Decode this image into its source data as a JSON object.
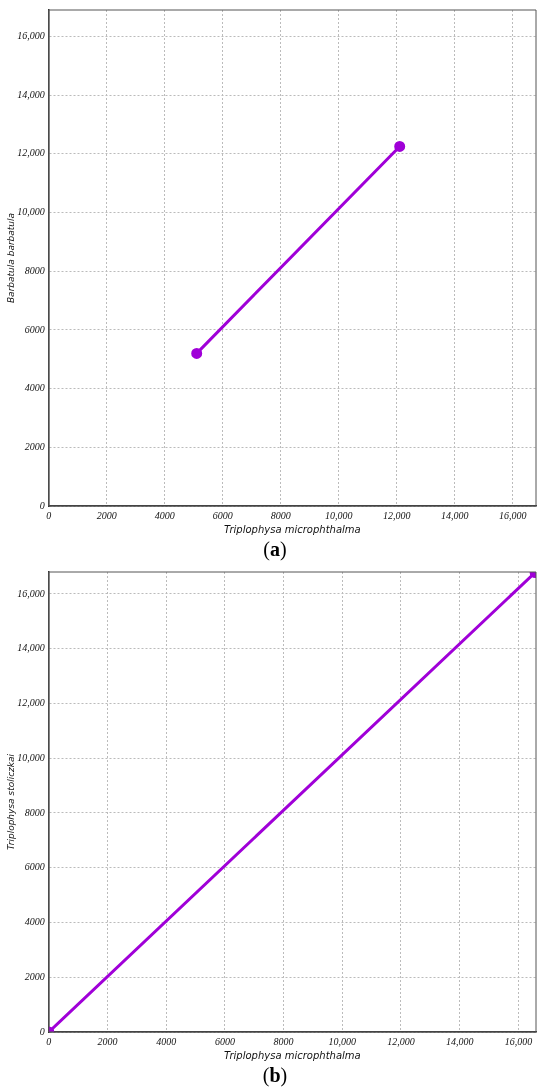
{
  "chart_data": [
    {
      "type": "line",
      "xlabel": "Triplophysa microphthalma",
      "ylabel": "Barbatula barbatula",
      "annotations": [
        "(a)"
      ],
      "x": [
        5100,
        12100
      ],
      "series": [
        {
          "color": "#a000d8",
          "values": [
            5200,
            12250
          ]
        }
      ],
      "xlim": [
        0,
        16800
      ],
      "ylim": [
        0,
        16900
      ],
      "xticks": [
        0,
        2000,
        4000,
        6000,
        8000,
        {
          "value": 10000,
          "label": "10,000"
        },
        {
          "value": 12000,
          "label": "12,000"
        },
        {
          "value": 14000,
          "label": "14,000"
        },
        {
          "value": 16000,
          "label": "16,000"
        }
      ],
      "yticks": [
        0,
        2000,
        4000,
        6000,
        8000,
        {
          "value": 10000,
          "label": "10,000"
        },
        {
          "value": 12000,
          "label": "12,000"
        },
        {
          "value": 14000,
          "label": "14,000"
        },
        {
          "value": 16000,
          "label": "16,000"
        }
      ],
      "grid": true,
      "legend": false,
      "marker": "circle",
      "line_style": "solid"
    },
    {
      "type": "line",
      "xlabel": "Triplophysa microphthalma",
      "ylabel": "Triplophysa stoliczkai",
      "annotations": [
        "(b)"
      ],
      "x": [
        0,
        16570
      ],
      "series": [
        {
          "color": "#a000d8",
          "values": [
            0,
            16780
          ]
        }
      ],
      "xlim": [
        0,
        16600
      ],
      "ylim": [
        0,
        16800
      ],
      "xticks": [
        0,
        2000,
        4000,
        6000,
        8000,
        {
          "value": 10000,
          "label": "10,000"
        },
        {
          "value": 12000,
          "label": "12,000"
        },
        {
          "value": 14000,
          "label": "14,000"
        },
        {
          "value": 16000,
          "label": "16,000"
        }
      ],
      "yticks": [
        0,
        2000,
        4000,
        6000,
        8000,
        {
          "value": 10000,
          "label": "10,000"
        },
        {
          "value": 12000,
          "label": "12,000"
        },
        {
          "value": 14000,
          "label": "14,000"
        },
        {
          "value": 16000,
          "label": "16,000"
        }
      ],
      "grid": true,
      "legend": false,
      "marker": "circle",
      "line_style": "solid"
    }
  ]
}
